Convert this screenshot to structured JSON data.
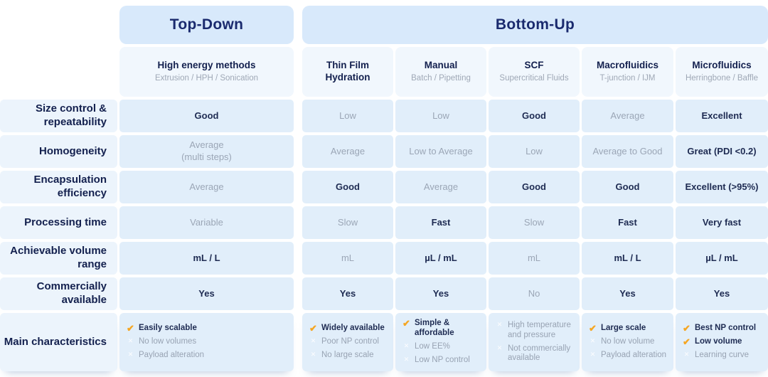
{
  "chart_data": {
    "type": "table",
    "icons": {
      "check": "✔",
      "cross": "✕"
    },
    "colors": {
      "banner_bg": "#d8e9fb",
      "header_cell_bg": "#f1f7fd",
      "row_band_bg": "#e1eefa",
      "label_band_bg": "#ecf4fc",
      "heading_text": "#1a2a6e",
      "value_text_strong": "#1e2b52",
      "value_text_muted": "#9ba6b6",
      "check_orange": "#f5a623"
    },
    "group_headers": [
      {
        "label": "Top-Down",
        "columns": [
          "High energy methods"
        ]
      },
      {
        "label": "Bottom-Up",
        "columns": [
          "Thin Film Hydration",
          "Manual",
          "SCF",
          "Macrofluidics",
          "Microfluidics"
        ]
      }
    ],
    "columns": [
      {
        "title": "High energy methods",
        "subtitle": "Extrusion / HPH / Sonication"
      },
      {
        "title": "Thin Film Hydration",
        "subtitle": ""
      },
      {
        "title": "Manual",
        "subtitle": "Batch / Pipetting"
      },
      {
        "title": "SCF",
        "subtitle": "Supercritical Fluids"
      },
      {
        "title": "Macrofluidics",
        "subtitle": "T-junction / IJM"
      },
      {
        "title": "Microfluidics",
        "subtitle": "Herringbone / Baffle"
      }
    ],
    "rows": [
      {
        "label": "Size control & repeatability",
        "cells": [
          {
            "text": "Good",
            "em": true
          },
          {
            "text": "Low",
            "em": false
          },
          {
            "text": "Low",
            "em": false
          },
          {
            "text": "Good",
            "em": true
          },
          {
            "text": "Average",
            "em": false
          },
          {
            "text": "Excellent",
            "em": true
          }
        ]
      },
      {
        "label": "Homogeneity",
        "cells": [
          {
            "text": "Average",
            "line2": "(multi steps)",
            "em": false
          },
          {
            "text": "Average",
            "em": false
          },
          {
            "text": "Low to Average",
            "em": false
          },
          {
            "text": "Low",
            "em": false
          },
          {
            "text": "Average to Good",
            "em": false
          },
          {
            "text": "Great (PDI <0.2)",
            "em": true
          }
        ]
      },
      {
        "label": "Encapsulation efficiency",
        "cells": [
          {
            "text": "Average",
            "em": false
          },
          {
            "text": "Good",
            "em": true
          },
          {
            "text": "Average",
            "em": false
          },
          {
            "text": "Good",
            "em": true
          },
          {
            "text": "Good",
            "em": true
          },
          {
            "text": "Excellent (>95%)",
            "em": true
          }
        ]
      },
      {
        "label": "Processing time",
        "cells": [
          {
            "text": "Variable",
            "em": false
          },
          {
            "text": "Slow",
            "em": false
          },
          {
            "text": "Fast",
            "em": true
          },
          {
            "text": "Slow",
            "em": false
          },
          {
            "text": "Fast",
            "em": true
          },
          {
            "text": "Very fast",
            "em": true
          }
        ]
      },
      {
        "label": "Achievable volume range",
        "cells": [
          {
            "text": "mL / L",
            "em": true
          },
          {
            "text": "mL",
            "em": false
          },
          {
            "text": "µL / mL",
            "em": true
          },
          {
            "text": "mL",
            "em": false
          },
          {
            "text": "mL / L",
            "em": true
          },
          {
            "text": "µL / mL",
            "em": true
          }
        ]
      },
      {
        "label": "Commercially available",
        "cells": [
          {
            "text": "Yes",
            "em": true
          },
          {
            "text": "Yes",
            "em": true
          },
          {
            "text": "Yes",
            "em": true
          },
          {
            "text": "No",
            "em": false
          },
          {
            "text": "Yes",
            "em": true
          },
          {
            "text": "Yes",
            "em": true
          }
        ]
      }
    ],
    "characteristics": {
      "label": "Main characteristics",
      "columns": [
        {
          "items": [
            {
              "icon": "check",
              "label": "Easily scalable",
              "em": true
            },
            {
              "icon": "cross",
              "label": "No low volumes",
              "em": false
            },
            {
              "icon": "cross",
              "label": "Payload alteration",
              "em": false
            }
          ]
        },
        {
          "items": [
            {
              "icon": "check",
              "label": "Widely available",
              "em": true
            },
            {
              "icon": "cross",
              "label": "Poor NP control",
              "em": false
            },
            {
              "icon": "cross",
              "label": "No large scale",
              "em": false
            }
          ]
        },
        {
          "items": [
            {
              "icon": "check",
              "label": "Simple & affordable",
              "em": true
            },
            {
              "icon": "cross",
              "label": "Low EE%",
              "em": false
            },
            {
              "icon": "cross",
              "label": "Low NP control",
              "em": false
            }
          ]
        },
        {
          "items": [
            {
              "icon": "cross",
              "label": "High temperature and pressure",
              "em": false
            },
            {
              "icon": "cross",
              "label": "Not commercially available",
              "em": false
            }
          ]
        },
        {
          "items": [
            {
              "icon": "check",
              "label": "Large scale",
              "em": true
            },
            {
              "icon": "cross",
              "label": "No low volume",
              "em": false
            },
            {
              "icon": "cross",
              "label": "Payload alteration",
              "em": false
            }
          ]
        },
        {
          "items": [
            {
              "icon": "check",
              "label": "Best NP control",
              "em": true
            },
            {
              "icon": "check",
              "label": "Low volume",
              "em": true
            },
            {
              "icon": "cross",
              "label": "Learning curve",
              "em": false
            }
          ]
        }
      ]
    }
  }
}
